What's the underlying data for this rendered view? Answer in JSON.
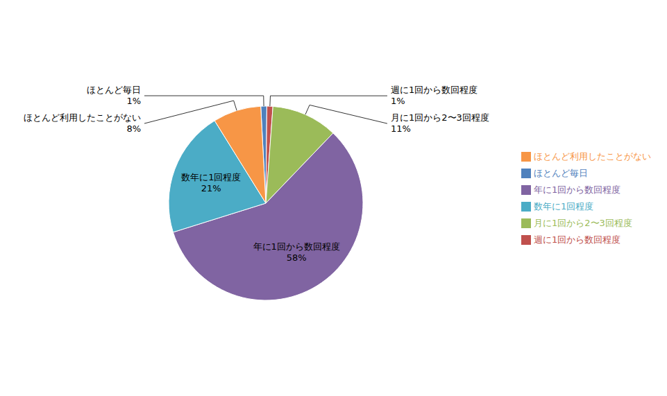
{
  "chart_data": {
    "type": "pie",
    "categories": [
      "ほとんど毎日",
      "週に1回から数回程度",
      "月に1回から2〜3回程度",
      "年に1回から数回程度",
      "数年に1回程度",
      "ほとんど利用したことがない"
    ],
    "values": [
      1,
      1,
      11,
      58,
      21,
      8
    ],
    "value_labels": [
      "1%",
      "1%",
      "11%",
      "58%",
      "21%",
      "8%"
    ],
    "colors": [
      "#4F81BD",
      "#C0504D",
      "#9BBB59",
      "#8064A2",
      "#4BACC6",
      "#F79646"
    ],
    "data_labels": true,
    "legend": "right"
  }
}
